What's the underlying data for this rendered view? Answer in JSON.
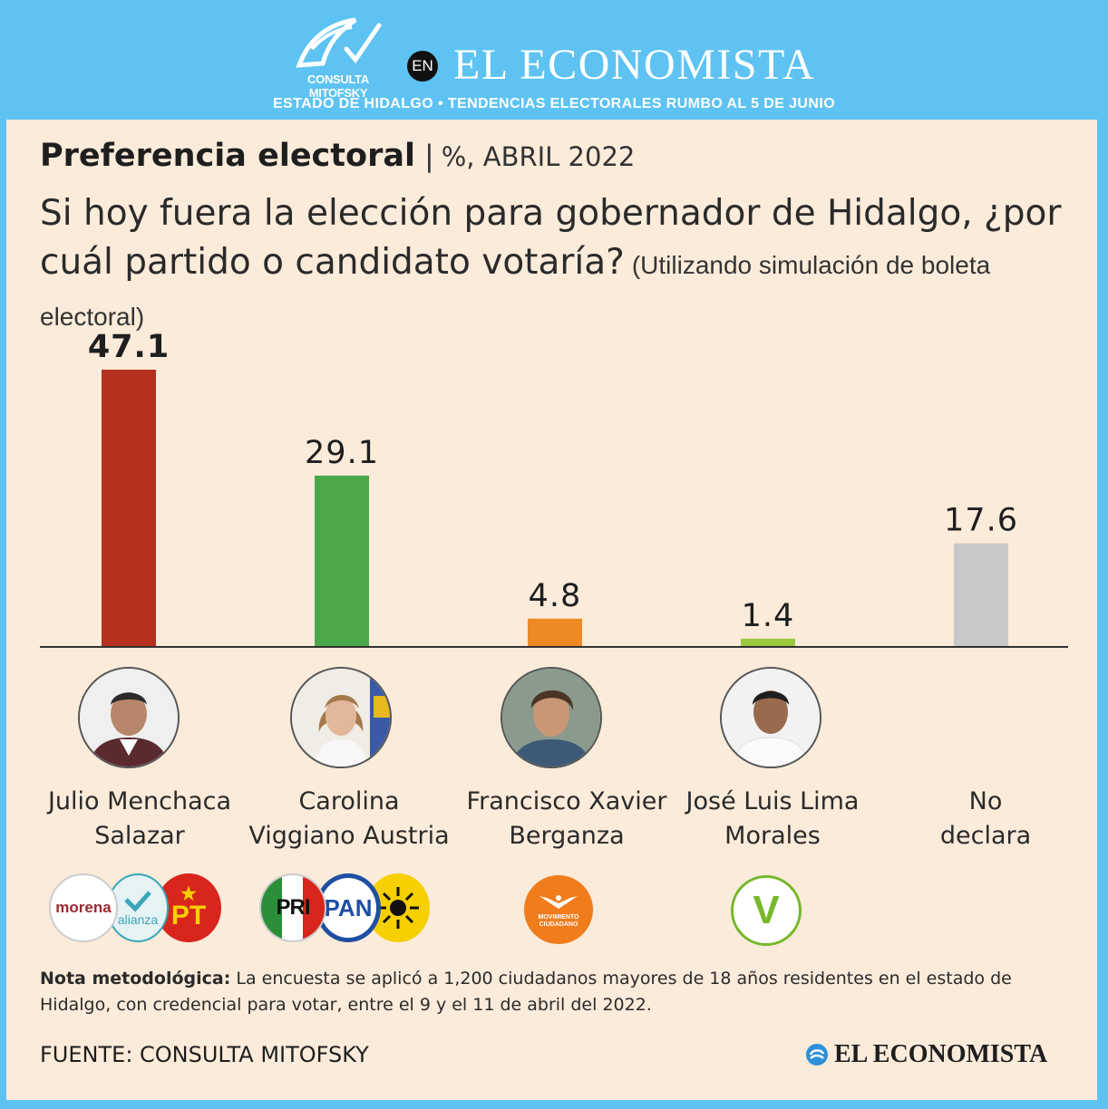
{
  "header": {
    "mitofsky_label": "CONSULTA MITOFSKY",
    "en_label": "EN",
    "brand": "EL ECONOMISTA",
    "subtitle": "ESTADO DE HIDALGO • TENDENCIAS ELECTORALES RUMBO AL 5 DE JUNIO"
  },
  "title": {
    "main": "Preferencia electoral",
    "separator": "|",
    "unit": "%, ABRIL 2022"
  },
  "question": {
    "text": "Si hoy fuera la elección para gobernador de Hidalgo, ¿por cuál partido o candidato votaría?",
    "note": "(Utilizando simulación de boleta electoral)"
  },
  "chart_data": {
    "type": "bar",
    "categories": [
      "Julio Menchaca Salazar",
      "Carolina Viggiano Austria",
      "Francisco Xavier Berganza",
      "José Luis Lima Morales",
      "No declara"
    ],
    "values": [
      47.1,
      29.1,
      4.8,
      1.4,
      17.6
    ],
    "value_labels": [
      "47.1",
      "29.1",
      "4.8",
      "1.4",
      "17.6"
    ],
    "colors": [
      "#b5301f",
      "#4aa84a",
      "#ee8a24",
      "#9ac93d",
      "#c8c8c8"
    ],
    "ylim": [
      0,
      47.1
    ],
    "grid": false,
    "legend": "none"
  },
  "candidates": [
    {
      "line1": "Julio Menchaca",
      "line2": "Salazar"
    },
    {
      "line1": "Carolina",
      "line2": "Viggiano Austria"
    },
    {
      "line1": "Francisco Xavier",
      "line2": "Berganza"
    },
    {
      "line1": "José Luis Lima",
      "line2": "Morales"
    },
    {
      "line1": "No",
      "line2": "declara"
    }
  ],
  "party_logos": {
    "morena": "morena",
    "nueva_alianza": "alianza",
    "pt": "PT",
    "pri": "PRI",
    "pan": "PAN",
    "prd": "prd-sun-icon",
    "mc": "MOVIMIENTO CIUDADANO",
    "pvem": "V"
  },
  "note": {
    "label": "Nota metodológica:",
    "text": "La encuesta se aplicó a 1,200 ciudadanos mayores de 18 años residentes en el estado de Hidalgo, con credencial para votar, entre el 9 y el 11 de abril del 2022."
  },
  "source": "FUENTE: CONSULTA MITOFSKY",
  "footer_brand": "EL ECONOMISTA"
}
